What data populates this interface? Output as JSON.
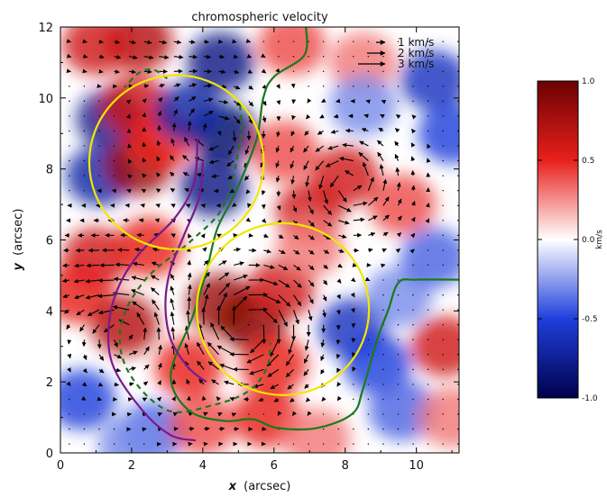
{
  "chart_data": {
    "type": "heatmap",
    "title": "chromospheric velocity",
    "xlabel_var": "x",
    "xlabel_unit": "(arcsec)",
    "ylabel_var": "y",
    "ylabel_unit": "(arcsec)",
    "xlim": [
      0,
      11.2
    ],
    "ylim": [
      0,
      12
    ],
    "xticks": [
      "0",
      "2",
      "4",
      "6",
      "8",
      "10"
    ],
    "yticks": [
      "0",
      "2",
      "4",
      "6",
      "8",
      "10",
      "12"
    ],
    "colorbar": {
      "range": [
        -1.0,
        1.0
      ],
      "ticks": [
        "1.0",
        "0.5",
        "0.0",
        "-0.5",
        "-1.0"
      ],
      "label": "km/s",
      "colors": {
        "-1.0": "#00004d",
        "-0.5": "#1f3fdc",
        "0.0": "#ffffff",
        "0.5": "#e8201c",
        "1.0": "#6b0000"
      }
    },
    "legend": {
      "position": "top-right",
      "entries": [
        "1 km/s",
        "2 km/s",
        "3 km/s"
      ]
    },
    "velocity_blobs": [
      {
        "x": 2.2,
        "y": 11.6,
        "v": 0.7
      },
      {
        "x": 1.0,
        "y": 11.5,
        "v": 0.6
      },
      {
        "x": 6.5,
        "y": 11.5,
        "v": 0.4
      },
      {
        "x": 8.5,
        "y": 11.0,
        "v": 0.3
      },
      {
        "x": 4.5,
        "y": 11.0,
        "v": -0.8
      },
      {
        "x": 4.6,
        "y": 9.0,
        "v": -0.9
      },
      {
        "x": 4.3,
        "y": 7.5,
        "v": -0.8
      },
      {
        "x": 1.4,
        "y": 9.4,
        "v": -0.8
      },
      {
        "x": 1.1,
        "y": 7.8,
        "v": -0.7
      },
      {
        "x": 2.2,
        "y": 8.1,
        "v": 0.8
      },
      {
        "x": 2.1,
        "y": 9.8,
        "v": 0.6
      },
      {
        "x": 2.8,
        "y": 8.8,
        "v": 0.5
      },
      {
        "x": 3.6,
        "y": 9.6,
        "v": -0.7
      },
      {
        "x": 10.5,
        "y": 10.5,
        "v": -0.6
      },
      {
        "x": 11.0,
        "y": 9.0,
        "v": -0.5
      },
      {
        "x": 8.5,
        "y": 9.8,
        "v": -0.3
      },
      {
        "x": 8.0,
        "y": 7.8,
        "v": 0.6
      },
      {
        "x": 9.6,
        "y": 7.0,
        "v": 0.4
      },
      {
        "x": 7.0,
        "y": 6.8,
        "v": 0.6
      },
      {
        "x": 6.3,
        "y": 8.5,
        "v": 0.4
      },
      {
        "x": 1.0,
        "y": 5.5,
        "v": 0.6
      },
      {
        "x": 2.5,
        "y": 5.8,
        "v": 0.5
      },
      {
        "x": 0.5,
        "y": 4.5,
        "v": 0.5
      },
      {
        "x": 1.8,
        "y": 3.6,
        "v": 0.7
      },
      {
        "x": 4.5,
        "y": 4.2,
        "v": 0.8
      },
      {
        "x": 5.4,
        "y": 3.7,
        "v": 0.9
      },
      {
        "x": 6.2,
        "y": 4.6,
        "v": 0.6
      },
      {
        "x": 6.0,
        "y": 2.5,
        "v": 0.5
      },
      {
        "x": 8.2,
        "y": 3.5,
        "v": -0.6
      },
      {
        "x": 8.9,
        "y": 2.5,
        "v": -0.5
      },
      {
        "x": 9.5,
        "y": 4.4,
        "v": -0.3
      },
      {
        "x": 10.5,
        "y": 5.5,
        "v": -0.4
      },
      {
        "x": 10.8,
        "y": 3.0,
        "v": 0.6
      },
      {
        "x": 9.6,
        "y": 1.2,
        "v": -0.4
      },
      {
        "x": 11.0,
        "y": 1.0,
        "v": 0.3
      },
      {
        "x": 0.6,
        "y": 1.5,
        "v": -0.5
      },
      {
        "x": 2.6,
        "y": 0.6,
        "v": -0.4
      },
      {
        "x": 4.0,
        "y": 0.8,
        "v": 0.4
      },
      {
        "x": 5.8,
        "y": 1.0,
        "v": 0.5
      },
      {
        "x": 7.2,
        "y": 0.4,
        "v": 0.3
      },
      {
        "x": 3.6,
        "y": 2.4,
        "v": 0.5
      },
      {
        "x": 7.0,
        "y": 5.8,
        "v": 0.3
      },
      {
        "x": 2.0,
        "y": 0.2,
        "v": -0.3
      }
    ],
    "circles": [
      {
        "cx": 3.26,
        "cy": 8.19,
        "r": 2.45,
        "color": "#f2e600"
      },
      {
        "cx": 6.25,
        "cy": 4.05,
        "r": 2.42,
        "color": "#f2e600"
      }
    ],
    "curves": [
      {
        "color": "#1a7a1a",
        "style": "solid",
        "points": [
          [
            6.9,
            12
          ],
          [
            6.85,
            11.2
          ],
          [
            6.0,
            10.6
          ],
          [
            5.7,
            10.0
          ],
          [
            5.5,
            8.8
          ],
          [
            4.9,
            7.3
          ],
          [
            4.4,
            6.3
          ],
          [
            4.1,
            5.1
          ],
          [
            3.7,
            3.8
          ],
          [
            3.1,
            2.2
          ],
          [
            3.6,
            1.2
          ],
          [
            4.6,
            0.9
          ],
          [
            5.4,
            0.95
          ],
          [
            6.1,
            0.7
          ],
          [
            7.2,
            0.7
          ],
          [
            8.2,
            1.1
          ],
          [
            8.5,
            1.8
          ],
          [
            8.9,
            3.2
          ],
          [
            9.2,
            4.0
          ],
          [
            9.5,
            4.8
          ],
          [
            10.0,
            4.88
          ],
          [
            11.2,
            4.88
          ]
        ]
      },
      {
        "color": "#1a7a1a",
        "style": "dashed",
        "points": [
          [
            5.05,
            9.8
          ],
          [
            5.05,
            8.8
          ],
          [
            4.6,
            7.0
          ],
          [
            3.7,
            6.0
          ],
          [
            2.4,
            4.9
          ],
          [
            1.7,
            3.6
          ],
          [
            1.9,
            2.3
          ],
          [
            3.0,
            1.2
          ],
          [
            4.3,
            1.35
          ],
          [
            5.3,
            1.75
          ],
          [
            5.8,
            2.4
          ],
          [
            5.9,
            3.1
          ]
        ]
      },
      {
        "color": "#1a7a1a",
        "style": "dashed",
        "points": [
          [
            3.0,
            10.55
          ],
          [
            2.6,
            10.8
          ],
          [
            2.2,
            10.7
          ],
          [
            1.8,
            10.3
          ]
        ]
      },
      {
        "color": "#7a1a8c",
        "style": "solid",
        "points": [
          [
            3.85,
            8.85
          ],
          [
            3.75,
            7.6
          ],
          [
            3.2,
            6.6
          ],
          [
            2.2,
            5.6
          ],
          [
            1.6,
            4.6
          ],
          [
            1.35,
            3.5
          ],
          [
            1.5,
            2.4
          ],
          [
            2.3,
            1.2
          ],
          [
            3.1,
            0.5
          ],
          [
            3.8,
            0.35
          ]
        ]
      },
      {
        "color": "#7a1a8c",
        "style": "solid",
        "points": [
          [
            4.0,
            8.2
          ],
          [
            3.9,
            7.2
          ],
          [
            3.5,
            6.2
          ],
          [
            3.1,
            5.2
          ],
          [
            2.95,
            4.2
          ],
          [
            3.1,
            3.2
          ],
          [
            3.6,
            2.4
          ],
          [
            4.1,
            2.0
          ]
        ]
      }
    ]
  }
}
